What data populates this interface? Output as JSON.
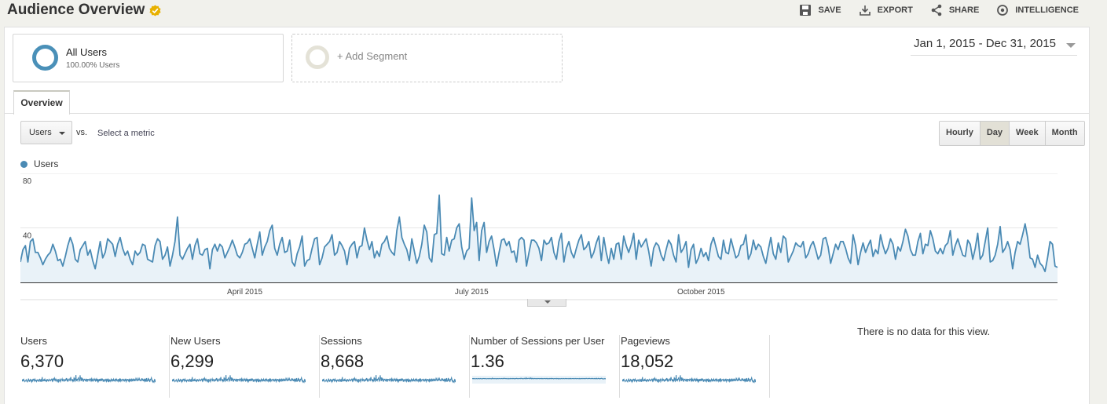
{
  "header": {
    "title": "Audience Overview",
    "actions": [
      {
        "label": "SAVE",
        "icon": "save-icon"
      },
      {
        "label": "EXPORT",
        "icon": "export-icon"
      },
      {
        "label": "SHARE",
        "icon": "share-icon"
      },
      {
        "label": "INTELLIGENCE",
        "icon": "intelligence-icon"
      }
    ]
  },
  "segments": {
    "active": {
      "title": "All Users",
      "subtitle": "100.00% Users"
    },
    "add_label": "+ Add Segment"
  },
  "date_range": "Jan 1, 2015 - Dec 31, 2015",
  "tabs": [
    {
      "label": "Overview"
    }
  ],
  "controls": {
    "metric": "Users",
    "vs": "vs.",
    "select_metric": "Select a metric",
    "granularity": [
      "Hourly",
      "Day",
      "Week",
      "Month"
    ],
    "active_granularity": "Day"
  },
  "colors": {
    "line": "#4a8ab4",
    "fill": "#e9f2f8",
    "accent": "#e8b100"
  },
  "chart_data": {
    "type": "line",
    "legend": [
      "Users"
    ],
    "y_ticks": [
      80,
      40
    ],
    "ylim": [
      0,
      80
    ],
    "x_labels": [
      "April 2015",
      "July 2015",
      "October 2015"
    ],
    "x_label_days": [
      90,
      181,
      273
    ],
    "series": [
      {
        "name": "Users",
        "values": [
          15,
          24,
          27,
          15,
          30,
          32,
          22,
          22,
          18,
          13,
          17,
          20,
          22,
          28,
          23,
          16,
          17,
          12,
          19,
          27,
          33,
          28,
          17,
          15,
          24,
          27,
          30,
          20,
          24,
          16,
          10,
          20,
          30,
          18,
          22,
          32,
          30,
          28,
          19,
          28,
          33,
          25,
          20,
          23,
          17,
          13,
          23,
          20,
          22,
          28,
          27,
          17,
          16,
          15,
          27,
          32,
          30,
          17,
          20,
          26,
          12,
          20,
          30,
          48,
          20,
          17,
          21,
          25,
          28,
          17,
          27,
          32,
          21,
          20,
          24,
          25,
          10,
          24,
          28,
          23,
          28,
          26,
          18,
          22,
          26,
          31,
          26,
          20,
          18,
          22,
          28,
          29,
          32,
          25,
          18,
          28,
          37,
          20,
          26,
          30,
          38,
          42,
          25,
          20,
          28,
          33,
          22,
          23,
          31,
          15,
          12,
          21,
          26,
          34,
          12,
          16,
          17,
          25,
          32,
          33,
          13,
          18,
          26,
          28,
          30,
          35,
          20,
          22,
          30,
          27,
          23,
          13,
          25,
          28,
          30,
          18,
          26,
          27,
          40,
          31,
          24,
          30,
          18,
          23,
          19,
          28,
          30,
          34,
          25,
          22,
          20,
          38,
          48,
          33,
          28,
          24,
          16,
          32,
          23,
          14,
          19,
          28,
          42,
          37,
          18,
          15,
          35,
          36,
          64,
          21,
          20,
          33,
          23,
          31,
          32,
          40,
          43,
          26,
          17,
          23,
          25,
          62,
          38,
          44,
          16,
          38,
          44,
          22,
          30,
          34,
          24,
          12,
          22,
          31,
          32,
          27,
          30,
          22,
          23,
          15,
          31,
          33,
          31,
          12,
          22,
          31,
          31,
          29,
          25,
          16,
          31,
          28,
          29,
          33,
          22,
          17,
          30,
          36,
          15,
          25,
          30,
          22,
          18,
          25,
          31,
          35,
          24,
          26,
          30,
          18,
          22,
          29,
          34,
          16,
          33,
          22,
          14,
          25,
          17,
          28,
          29,
          17,
          34,
          27,
          22,
          28,
          36,
          17,
          31,
          26,
          29,
          32,
          23,
          12,
          25,
          29,
          27,
          20,
          16,
          24,
          31,
          28,
          20,
          15,
          35,
          22,
          25,
          30,
          11,
          24,
          28,
          14,
          18,
          25,
          19,
          22,
          16,
          28,
          33,
          26,
          19,
          17,
          31,
          22,
          21,
          32,
          25,
          18,
          20,
          27,
          28,
          35,
          17,
          21,
          31,
          24,
          28,
          26,
          19,
          14,
          24,
          33,
          21,
          17,
          29,
          22,
          34,
          32,
          15,
          19,
          23,
          29,
          27,
          26,
          30,
          18,
          21,
          27,
          30,
          24,
          17,
          20,
          32,
          33,
          26,
          14,
          21,
          28,
          24,
          30,
          30,
          25,
          18,
          14,
          35,
          27,
          13,
          22,
          29,
          22,
          27,
          31,
          19,
          24,
          21,
          35,
          27,
          21,
          25,
          32,
          28,
          17,
          26,
          23,
          30,
          39,
          34,
          24,
          20,
          20,
          30,
          36,
          21,
          28,
          27,
          38,
          32,
          23,
          21,
          25,
          21,
          27,
          29,
          38,
          20,
          27,
          32,
          26,
          20,
          19,
          31,
          28,
          17,
          25,
          36,
          17,
          20,
          30,
          40,
          15,
          16,
          20,
          28,
          41,
          22,
          25,
          30,
          24,
          10,
          22,
          30,
          28,
          35,
          43,
          33,
          18,
          17,
          11,
          20,
          14,
          12,
          8,
          18,
          30,
          28,
          12,
          11
        ]
      }
    ]
  },
  "summary": {
    "metrics": [
      {
        "label": "Users",
        "value": "6,370"
      },
      {
        "label": "New Users",
        "value": "6,299"
      },
      {
        "label": "Sessions",
        "value": "8,668"
      },
      {
        "label": "Number of Sessions per User",
        "value": "1.36"
      },
      {
        "label": "Pageviews",
        "value": "18,052"
      }
    ],
    "no_data": "There is no data for this view."
  }
}
